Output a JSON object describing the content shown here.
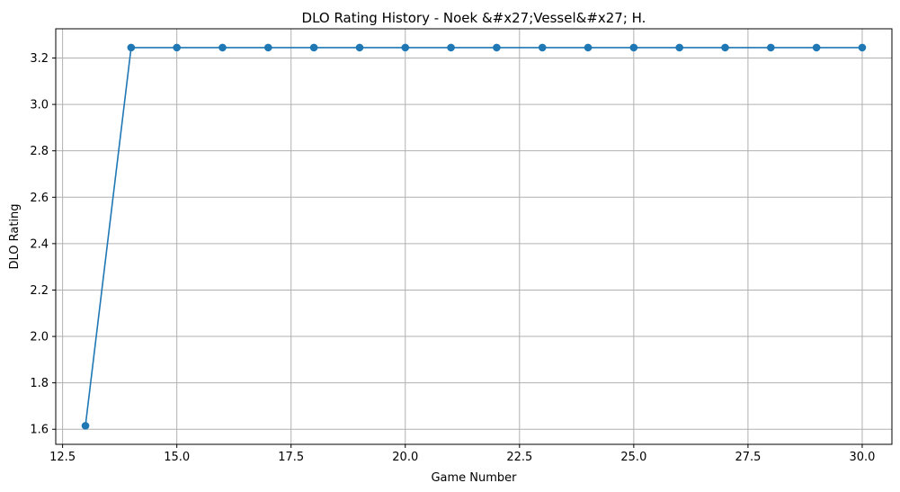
{
  "chart_data": {
    "type": "line",
    "title": "DLO Rating History - Noek &#x27;Vessel&#x27; H.",
    "xlabel": "Game Number",
    "ylabel": "DLO Rating",
    "xlim": [
      12.35,
      30.65
    ],
    "ylim": [
      1.535,
      3.326
    ],
    "xticks": [
      12.5,
      15.0,
      17.5,
      20.0,
      22.5,
      25.0,
      27.5,
      30.0
    ],
    "xtick_labels": [
      "12.5",
      "15.0",
      "17.5",
      "20.0",
      "22.5",
      "25.0",
      "27.5",
      "30.0"
    ],
    "yticks": [
      1.6,
      1.8,
      2.0,
      2.2,
      2.4,
      2.6,
      2.8,
      3.0,
      3.2
    ],
    "ytick_labels": [
      "1.6",
      "1.8",
      "2.0",
      "2.2",
      "2.4",
      "2.6",
      "2.8",
      "3.0",
      "3.2"
    ],
    "grid": true,
    "color": "#1f77b4",
    "marker": "circle",
    "series": [
      {
        "x": [
          13,
          14,
          15,
          16,
          17,
          18,
          19,
          20,
          21,
          22,
          23,
          24,
          25,
          26,
          27,
          28,
          29,
          30
        ],
        "y": [
          1.615,
          3.245,
          3.245,
          3.245,
          3.245,
          3.245,
          3.245,
          3.245,
          3.245,
          3.245,
          3.245,
          3.245,
          3.245,
          3.245,
          3.245,
          3.245,
          3.245,
          3.245
        ]
      }
    ]
  }
}
